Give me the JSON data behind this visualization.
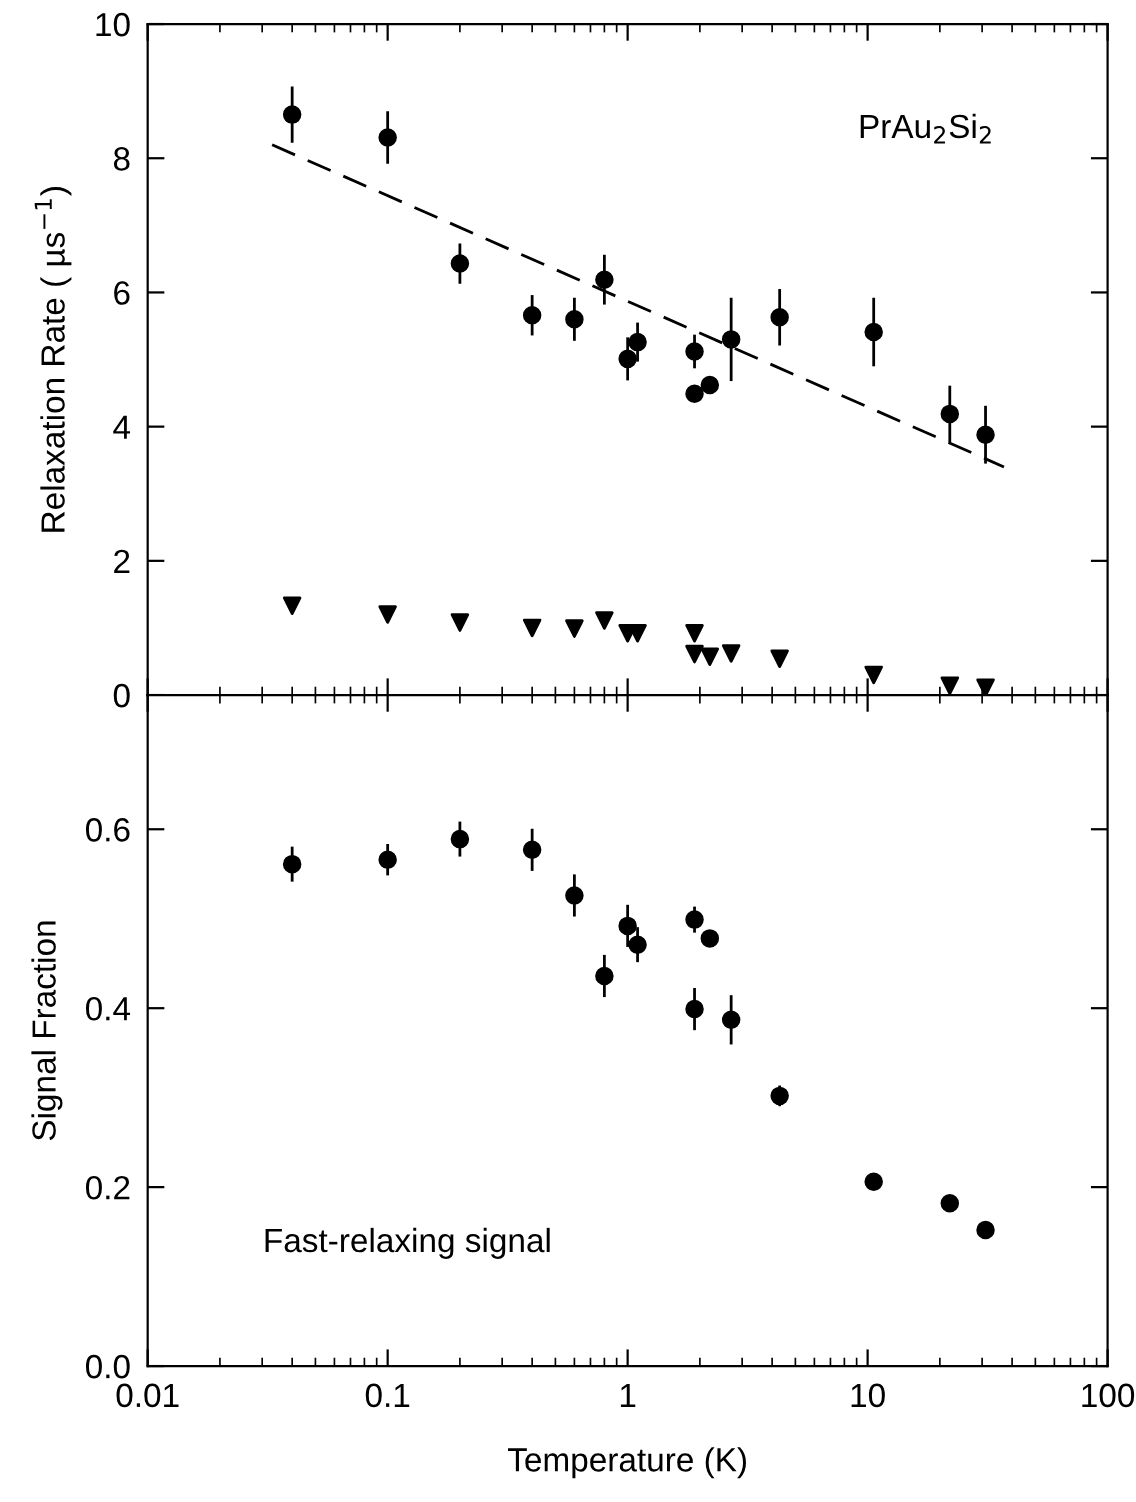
{
  "chart_data": [
    {
      "type": "scatter",
      "ylabel": "Relaxation Rate ( µs$^{−1}$)",
      "annotations": [
        "PrAu$_{2}$Si$_{2}$"
      ],
      "log": "x",
      "xlim": [
        0.01,
        100
      ],
      "xticks": [
        {
          "value": 0.01,
          "label": null
        },
        {
          "value": 0.1,
          "label": null
        },
        {
          "value": 1,
          "label": null
        },
        {
          "value": 10,
          "label": null
        },
        {
          "value": 100,
          "label": null
        }
      ],
      "ylim": [
        0,
        10
      ],
      "yticks": [
        0,
        2,
        4,
        6,
        8,
        10
      ],
      "tick_labels": "y",
      "grid": false,
      "series": [
        {
          "marker": "circle",
          "color": "#000000",
          "x": [
            0.04,
            0.1,
            0.2,
            0.4,
            0.6,
            0.8,
            1.0,
            1.1,
            1.9,
            1.9,
            2.2,
            2.7,
            4.3,
            10.6,
            22,
            31
          ],
          "values": [
            8.65,
            8.31,
            6.43,
            5.66,
            5.6,
            6.19,
            5.01,
            5.26,
            5.12,
            4.49,
            4.62,
            5.3,
            5.63,
            5.41,
            4.19,
            3.88
          ],
          "errors": [
            0.4,
            0.37,
            0.28,
            0.28,
            0.3,
            0.35,
            0.3,
            0.27,
            0.23,
            null,
            null,
            0.6,
            0.4,
            0.49,
            0.4,
            0.41
          ]
        },
        {
          "marker": "triangle",
          "color": "#000000",
          "x": [
            0.04,
            0.1,
            0.2,
            0.4,
            0.6,
            0.8,
            1.0,
            1.1,
            1.9,
            1.9,
            2.2,
            2.7,
            4.3,
            10.6,
            22,
            31
          ],
          "values": [
            1.33,
            1.2,
            1.08,
            1.0,
            0.99,
            1.11,
            0.92,
            0.92,
            0.92,
            0.61,
            0.57,
            0.62,
            0.54,
            0.3,
            0.14,
            0.11
          ]
        },
        {
          "type": "line",
          "line_style": "dashed",
          "marker": "none",
          "color": "#000000",
          "x": [
            0.033,
            37
          ],
          "values": [
            8.2,
            3.4
          ]
        }
      ]
    },
    {
      "type": "scatter",
      "xlabel": "Temperature (K)",
      "ylabel": "Signal Fraction",
      "annotations": [
        "Fast-relaxing signal"
      ],
      "log": "x",
      "xlim": [
        0.01,
        100
      ],
      "xticks": [
        {
          "value": 0.01,
          "label": "0.01"
        },
        {
          "value": 0.1,
          "label": "0.1"
        },
        {
          "value": 1,
          "label": "1"
        },
        {
          "value": 10,
          "label": "10"
        },
        {
          "value": 100,
          "label": "100"
        }
      ],
      "ylim": [
        0,
        0.75
      ],
      "yticks": [
        {
          "value": 0,
          "label": "0.0"
        },
        0.2,
        0.4,
        0.6
      ],
      "grid": false,
      "series": [
        {
          "marker": "circle",
          "color": "#000000",
          "x": [
            0.04,
            0.1,
            0.2,
            0.4,
            0.6,
            0.8,
            1.0,
            1.1,
            1.9,
            1.9,
            2.2,
            2.7,
            4.3,
            10.6,
            22,
            31
          ],
          "values": [
            0.561,
            0.566,
            0.589,
            0.577,
            0.526,
            0.436,
            0.492,
            0.471,
            0.499,
            0.399,
            0.478,
            0.387,
            0.302,
            0.206,
            0.182,
            0.152
          ],
          "errors": [
            0.018,
            0.016,
            0.018,
            0.022,
            0.022,
            0.022,
            0.022,
            0.018,
            0.013,
            0.022,
            null,
            0.026,
            0.01,
            null,
            null,
            null
          ]
        }
      ]
    }
  ]
}
